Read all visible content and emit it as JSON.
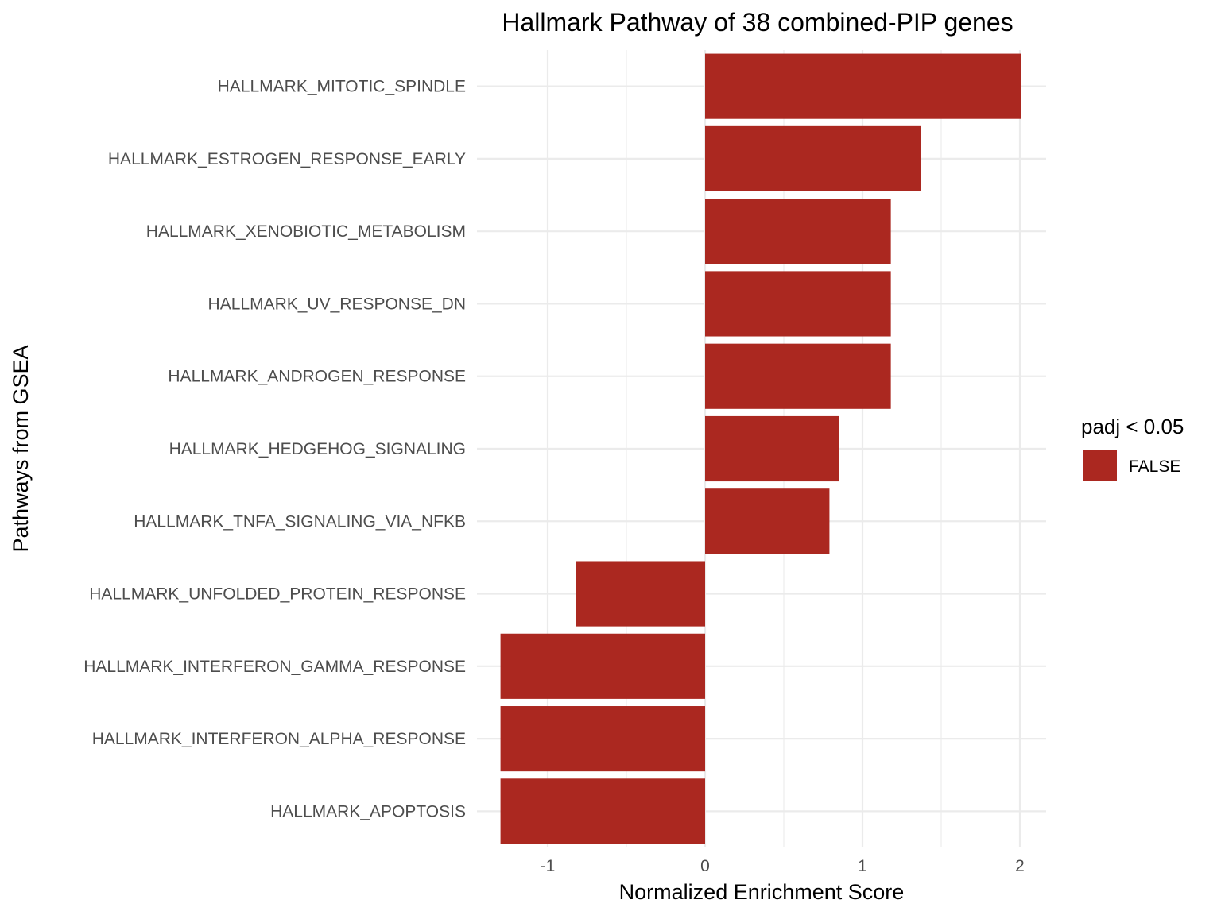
{
  "chart_data": {
    "type": "bar",
    "orientation": "horizontal",
    "title": "Hallmark Pathway of 38 combined-PIP genes",
    "xlabel": "Normalized Enrichment Score",
    "ylabel": "Pathways from GSEA",
    "xlim": [
      -1.45,
      2.18
    ],
    "xticks": [
      -1,
      0,
      1,
      2
    ],
    "xtick_labels": [
      "-1",
      "0",
      "1",
      "2"
    ],
    "grid": true,
    "categories": [
      "HALLMARK_MITOTIC_SPINDLE",
      "HALLMARK_ESTROGEN_RESPONSE_EARLY",
      "HALLMARK_XENOBIOTIC_METABOLISM",
      "HALLMARK_UV_RESPONSE_DN",
      "HALLMARK_ANDROGEN_RESPONSE",
      "HALLMARK_HEDGEHOG_SIGNALING",
      "HALLMARK_TNFA_SIGNALING_VIA_NFKB",
      "HALLMARK_UNFOLDED_PROTEIN_RESPONSE",
      "HALLMARK_INTERFERON_GAMMA_RESPONSE",
      "HALLMARK_INTERFERON_ALPHA_RESPONSE",
      "HALLMARK_APOPTOSIS"
    ],
    "values": [
      2.01,
      1.37,
      1.18,
      1.18,
      1.18,
      0.85,
      0.79,
      -0.82,
      -1.3,
      -1.3,
      -1.3
    ],
    "bar_color": "#ab2820",
    "legend": {
      "title": "padj < 0.05",
      "placement": "right",
      "entries": [
        {
          "label": "FALSE",
          "color": "#ab2820"
        }
      ]
    }
  }
}
